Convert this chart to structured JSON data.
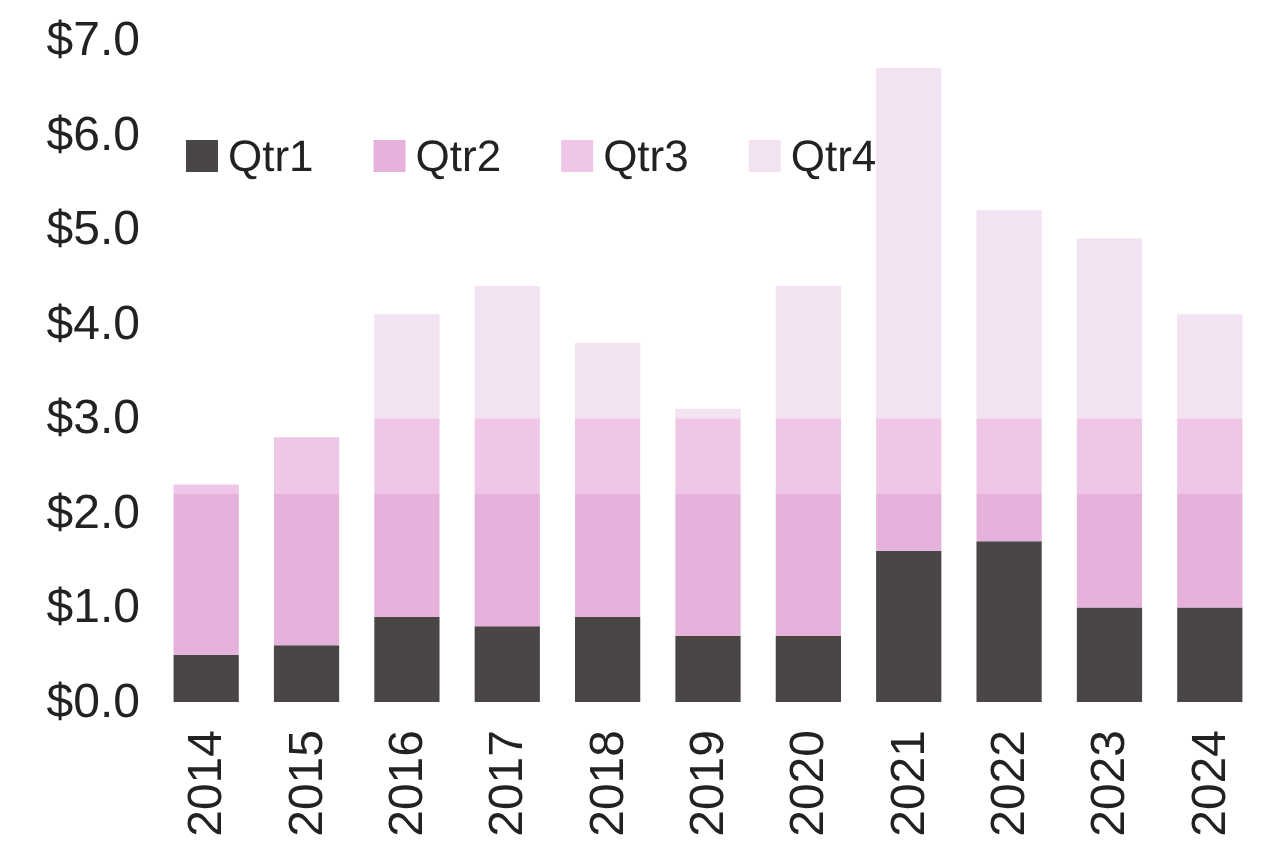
{
  "chart_data": {
    "type": "bar",
    "stacked": true,
    "categories": [
      "2014",
      "2015",
      "2016",
      "2017",
      "2018",
      "2019",
      "2020",
      "2021",
      "2022",
      "2023",
      "2024"
    ],
    "series": [
      {
        "name": "Qtr1",
        "color": "#4a4646",
        "values": [
          0.5,
          0.6,
          0.9,
          0.8,
          0.9,
          0.7,
          0.7,
          1.6,
          1.7,
          1.0,
          1.0
        ]
      },
      {
        "name": "Qtr2",
        "color": "#e6b2dc",
        "values": [
          1.7,
          1.6,
          1.3,
          1.4,
          1.3,
          1.5,
          1.5,
          0.6,
          0.5,
          1.2,
          1.2
        ]
      },
      {
        "name": "Qtr3",
        "color": "#efc6e6",
        "values": [
          0.1,
          0.6,
          0.8,
          0.8,
          0.8,
          0.8,
          0.8,
          0.8,
          0.8,
          0.8,
          0.8
        ]
      },
      {
        "name": "Qtr4",
        "color": "#f2e2f2",
        "values": [
          0,
          0,
          1.1,
          1.4,
          0.8,
          0.1,
          1.4,
          3.7,
          2.2,
          1.9,
          1.1
        ]
      }
    ],
    "ylim": [
      0,
      7
    ],
    "yticks": [
      {
        "value": 0,
        "label": "$0.0"
      },
      {
        "value": 1,
        "label": "$1.0"
      },
      {
        "value": 2,
        "label": "$2.0"
      },
      {
        "value": 3,
        "label": "$3.0"
      },
      {
        "value": 4,
        "label": "$4.0"
      },
      {
        "value": 5,
        "label": "$5.0"
      },
      {
        "value": 6,
        "label": "$6.0"
      },
      {
        "value": 7,
        "label": "$7.0"
      }
    ],
    "grid": false,
    "legend": "top left"
  }
}
